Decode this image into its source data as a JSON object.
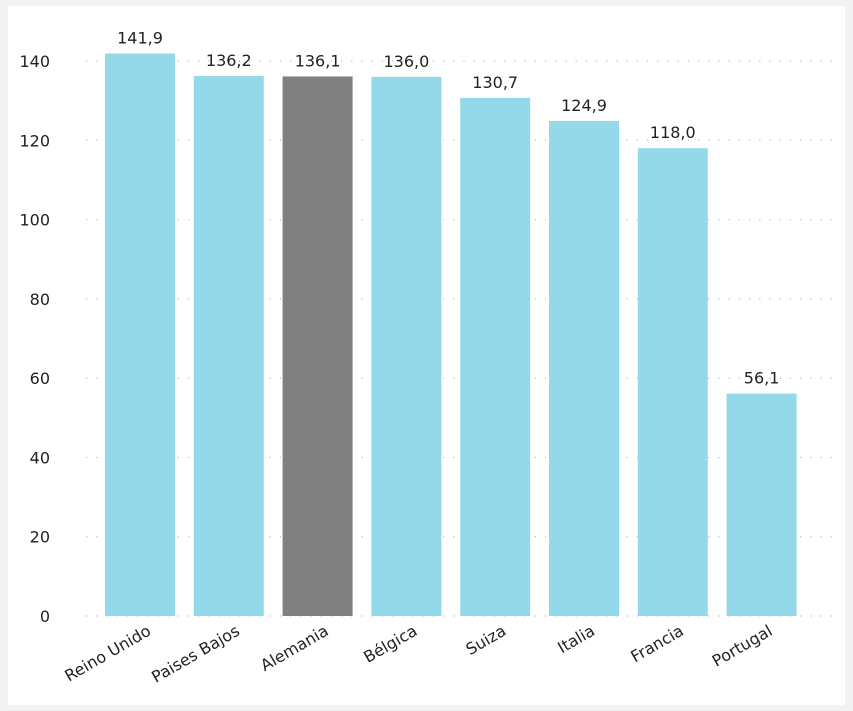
{
  "chart_data": {
    "type": "bar",
    "title": "",
    "xlabel": "",
    "ylabel": "",
    "categories": [
      "Reino Unido",
      "Paises Bajos",
      "Alemania",
      "Bélgica",
      "Suiza",
      "Italia",
      "Francia",
      "Portugal"
    ],
    "values": [
      141.9,
      136.2,
      136.1,
      136.0,
      130.7,
      124.9,
      118.0,
      56.1
    ],
    "value_labels": [
      "141,9",
      "136,2",
      "136,1",
      "136,0",
      "130,7",
      "124,9",
      "118,0",
      "56,1"
    ],
    "highlighted_category": "Alemania",
    "ylim": [
      0,
      140
    ],
    "yticks": [
      0,
      20,
      40,
      60,
      80,
      100,
      120,
      140
    ],
    "grid": true,
    "colors": {
      "bar": "#93d9e9",
      "highlight": "#808080",
      "grid": "#bdbdbd",
      "text": "#222222",
      "background": "#f2f2f2",
      "plot_background": "#ffffff"
    }
  }
}
